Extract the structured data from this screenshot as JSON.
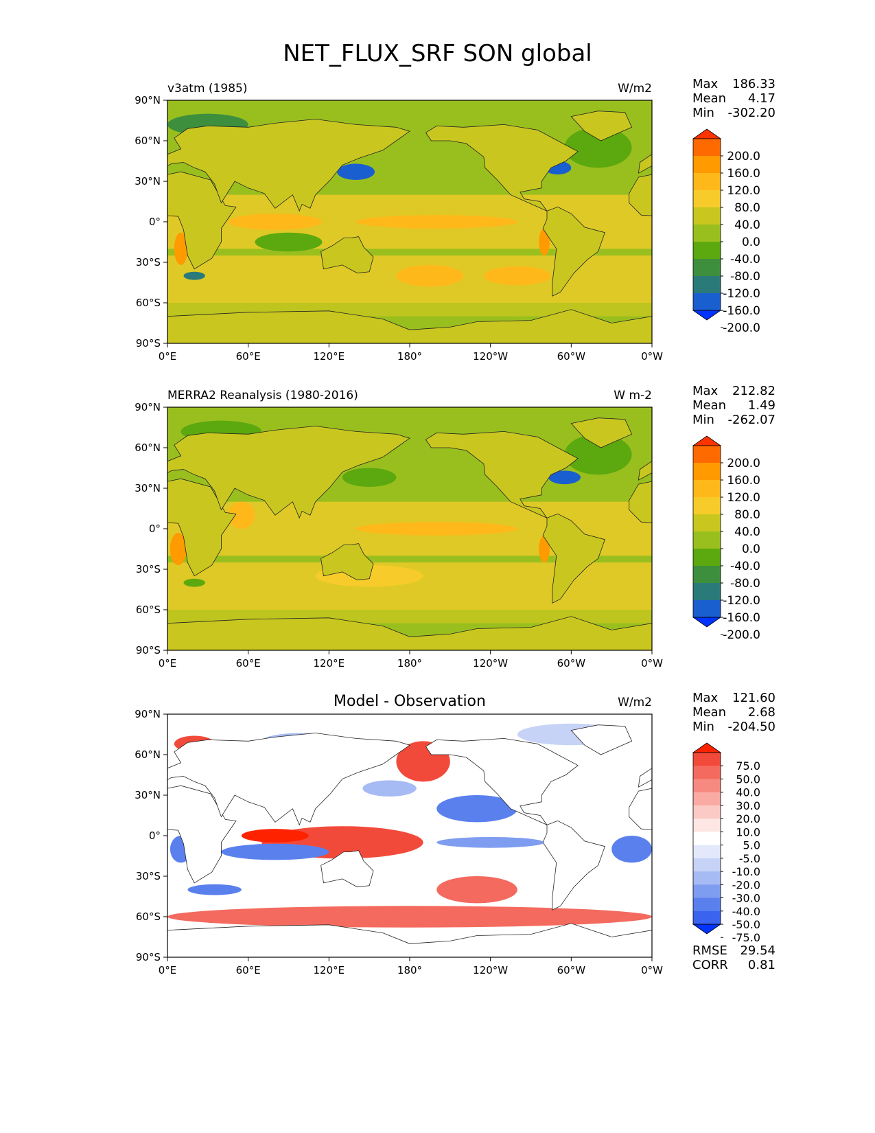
{
  "title": "NET_FLUX_SRF SON global",
  "colors": {
    "land": "#c9c71f",
    "ocean_green": "#99bf1f",
    "coast": "#222222",
    "diff_white": "#ffffff"
  },
  "chart_data": [
    {
      "type": "heatmap",
      "left_title": "v3atm (1985)",
      "center_title": "",
      "units": "W/m2",
      "stats": {
        "max_label": "Max",
        "max": "186.33",
        "mean_label": "Mean",
        "mean": "4.17",
        "min_label": "Min",
        "min": "-302.20"
      },
      "xlim": [
        0,
        360
      ],
      "ylim": [
        -90,
        90
      ],
      "xticks": [
        "0°E",
        "60°E",
        "120°E",
        "180°",
        "120°W",
        "60°W",
        "0°W"
      ],
      "yticks": [
        "90°N",
        "60°N",
        "30°N",
        "0°",
        "30°S",
        "60°S",
        "90°S"
      ],
      "colorbar": {
        "labels": [
          "200.0",
          "160.0",
          "120.0",
          "80.0",
          "40.0",
          "0.0",
          "-40.0",
          "-80.0",
          "-120.0",
          "-160.0",
          "-200.0"
        ],
        "colors": [
          "#ff3300",
          "#ff6a00",
          "#ff9a00",
          "#ffb81a",
          "#f7cc2a",
          "#c9c71f",
          "#99bf1f",
          "#5ca80f",
          "#3d8f3d",
          "#2a7a7a",
          "#1a5fcf",
          "#0033ff"
        ]
      },
      "blobs": [
        {
          "lon": 140,
          "lat": 37,
          "rx": 14,
          "ry": 6,
          "level": -200
        },
        {
          "lon": 290,
          "lat": 40,
          "rx": 10,
          "ry": 5,
          "level": -200
        },
        {
          "lon": 20,
          "lat": -40,
          "rx": 8,
          "ry": 3,
          "level": -160
        },
        {
          "lon": 90,
          "lat": -15,
          "rx": 25,
          "ry": 7,
          "level": -80
        },
        {
          "lon": 30,
          "lat": 72,
          "rx": 30,
          "ry": 8,
          "level": -120
        },
        {
          "lon": 320,
          "lat": 55,
          "rx": 25,
          "ry": 15,
          "level": -80
        },
        {
          "lon": 80,
          "lat": 0,
          "rx": 35,
          "ry": 6,
          "level": 80
        },
        {
          "lon": 200,
          "lat": 0,
          "rx": 60,
          "ry": 5,
          "level": 80
        },
        {
          "lon": 195,
          "lat": -40,
          "rx": 25,
          "ry": 8,
          "level": 80
        },
        {
          "lon": 260,
          "lat": -40,
          "rx": 25,
          "ry": 7,
          "level": 80
        },
        {
          "lon": 10,
          "lat": -20,
          "rx": 5,
          "ry": 12,
          "level": 120
        },
        {
          "lon": 280,
          "lat": -15,
          "rx": 4,
          "ry": 10,
          "level": 120
        }
      ]
    },
    {
      "type": "heatmap",
      "left_title": "MERRA2 Reanalysis (1980-2016)",
      "center_title": "",
      "units": "W m-2",
      "stats": {
        "max_label": "Max",
        "max": "212.82",
        "mean_label": "Mean",
        "mean": "1.49",
        "min_label": "Min",
        "min": "-262.07"
      },
      "xlim": [
        0,
        360
      ],
      "ylim": [
        -90,
        90
      ],
      "xticks": [
        "0°E",
        "60°E",
        "120°E",
        "180°",
        "120°W",
        "60°W",
        "0°W"
      ],
      "yticks": [
        "90°N",
        "60°N",
        "30°N",
        "0°",
        "30°S",
        "60°S",
        "90°S"
      ],
      "colorbar": {
        "labels": [
          "200.0",
          "160.0",
          "120.0",
          "80.0",
          "40.0",
          "0.0",
          "-40.0",
          "-80.0",
          "-120.0",
          "-160.0",
          "-200.0"
        ],
        "colors": [
          "#ff3300",
          "#ff6a00",
          "#ff9a00",
          "#ffb81a",
          "#f7cc2a",
          "#c9c71f",
          "#99bf1f",
          "#5ca80f",
          "#3d8f3d",
          "#2a7a7a",
          "#1a5fcf",
          "#0033ff"
        ]
      },
      "blobs": [
        {
          "lon": 150,
          "lat": 38,
          "rx": 20,
          "ry": 7,
          "level": -80
        },
        {
          "lon": 295,
          "lat": 38,
          "rx": 12,
          "ry": 5,
          "level": -200
        },
        {
          "lon": 20,
          "lat": -40,
          "rx": 8,
          "ry": 3,
          "level": -80
        },
        {
          "lon": 40,
          "lat": 72,
          "rx": 30,
          "ry": 8,
          "level": -80
        },
        {
          "lon": 320,
          "lat": 55,
          "rx": 25,
          "ry": 15,
          "level": -80
        },
        {
          "lon": 200,
          "lat": 0,
          "rx": 60,
          "ry": 5,
          "level": 80
        },
        {
          "lon": 150,
          "lat": -35,
          "rx": 40,
          "ry": 8,
          "level": 40
        },
        {
          "lon": 8,
          "lat": -15,
          "rx": 6,
          "ry": 12,
          "level": 120
        },
        {
          "lon": 280,
          "lat": -15,
          "rx": 4,
          "ry": 10,
          "level": 120
        },
        {
          "lon": 55,
          "lat": 10,
          "rx": 10,
          "ry": 10,
          "level": 80
        }
      ]
    },
    {
      "type": "heatmap",
      "left_title": "",
      "center_title": "Model - Observation",
      "units": "W/m2",
      "stats": {
        "max_label": "Max",
        "max": "121.60",
        "mean_label": "Mean",
        "mean": "2.68",
        "min_label": "Min",
        "min": "-204.50"
      },
      "extra_stats": {
        "rmse_label": "RMSE",
        "rmse": "29.54",
        "corr_label": "CORR",
        "corr": "0.81"
      },
      "xlim": [
        0,
        360
      ],
      "ylim": [
        -90,
        90
      ],
      "xticks": [
        "0°E",
        "60°E",
        "120°E",
        "180°",
        "120°W",
        "60°W",
        "0°W"
      ],
      "yticks": [
        "90°N",
        "60°N",
        "30°N",
        "0°",
        "30°S",
        "60°S",
        "90°S"
      ],
      "colorbar": {
        "labels": [
          "75.0",
          "50.0",
          "40.0",
          "30.0",
          "20.0",
          "10.0",
          "5.0",
          "-5.0",
          "-10.0",
          "-20.0",
          "-30.0",
          "-40.0",
          "-50.0",
          "-75.0"
        ],
        "colors": [
          "#ff2200",
          "#f24a3a",
          "#f46a5e",
          "#f78a80",
          "#f9aaa2",
          "#fbcac4",
          "#fde6e3",
          "#ffffff",
          "#e3e9fb",
          "#c6d3f7",
          "#a6baf3",
          "#7f9df0",
          "#5a80ee",
          "#3a63f0",
          "#0033ff"
        ]
      },
      "blobs": [
        {
          "lon": 130,
          "lat": -5,
          "rx": 60,
          "ry": 12,
          "level": 50
        },
        {
          "lon": 80,
          "lat": 0,
          "rx": 25,
          "ry": 5,
          "level": 75
        },
        {
          "lon": 190,
          "lat": 55,
          "rx": 20,
          "ry": 15,
          "level": 50
        },
        {
          "lon": 180,
          "lat": -60,
          "rx": 180,
          "ry": 8,
          "level": 40
        },
        {
          "lon": 230,
          "lat": -40,
          "rx": 30,
          "ry": 10,
          "level": 40
        },
        {
          "lon": 80,
          "lat": -12,
          "rx": 40,
          "ry": 6,
          "level": -50
        },
        {
          "lon": 35,
          "lat": -40,
          "rx": 20,
          "ry": 4,
          "level": -50
        },
        {
          "lon": 230,
          "lat": 20,
          "rx": 30,
          "ry": 10,
          "level": -50
        },
        {
          "lon": 240,
          "lat": -5,
          "rx": 40,
          "ry": 4,
          "level": -40
        },
        {
          "lon": 345,
          "lat": -10,
          "rx": 15,
          "ry": 10,
          "level": -50
        },
        {
          "lon": 165,
          "lat": 35,
          "rx": 20,
          "ry": 6,
          "level": -30
        },
        {
          "lon": 10,
          "lat": -10,
          "rx": 8,
          "ry": 10,
          "level": -50
        },
        {
          "lon": 300,
          "lat": 75,
          "rx": 40,
          "ry": 8,
          "level": -20
        },
        {
          "lon": 100,
          "lat": 70,
          "rx": 30,
          "ry": 6,
          "level": -30
        },
        {
          "lon": 20,
          "lat": 68,
          "rx": 15,
          "ry": 6,
          "level": 50
        }
      ]
    }
  ]
}
